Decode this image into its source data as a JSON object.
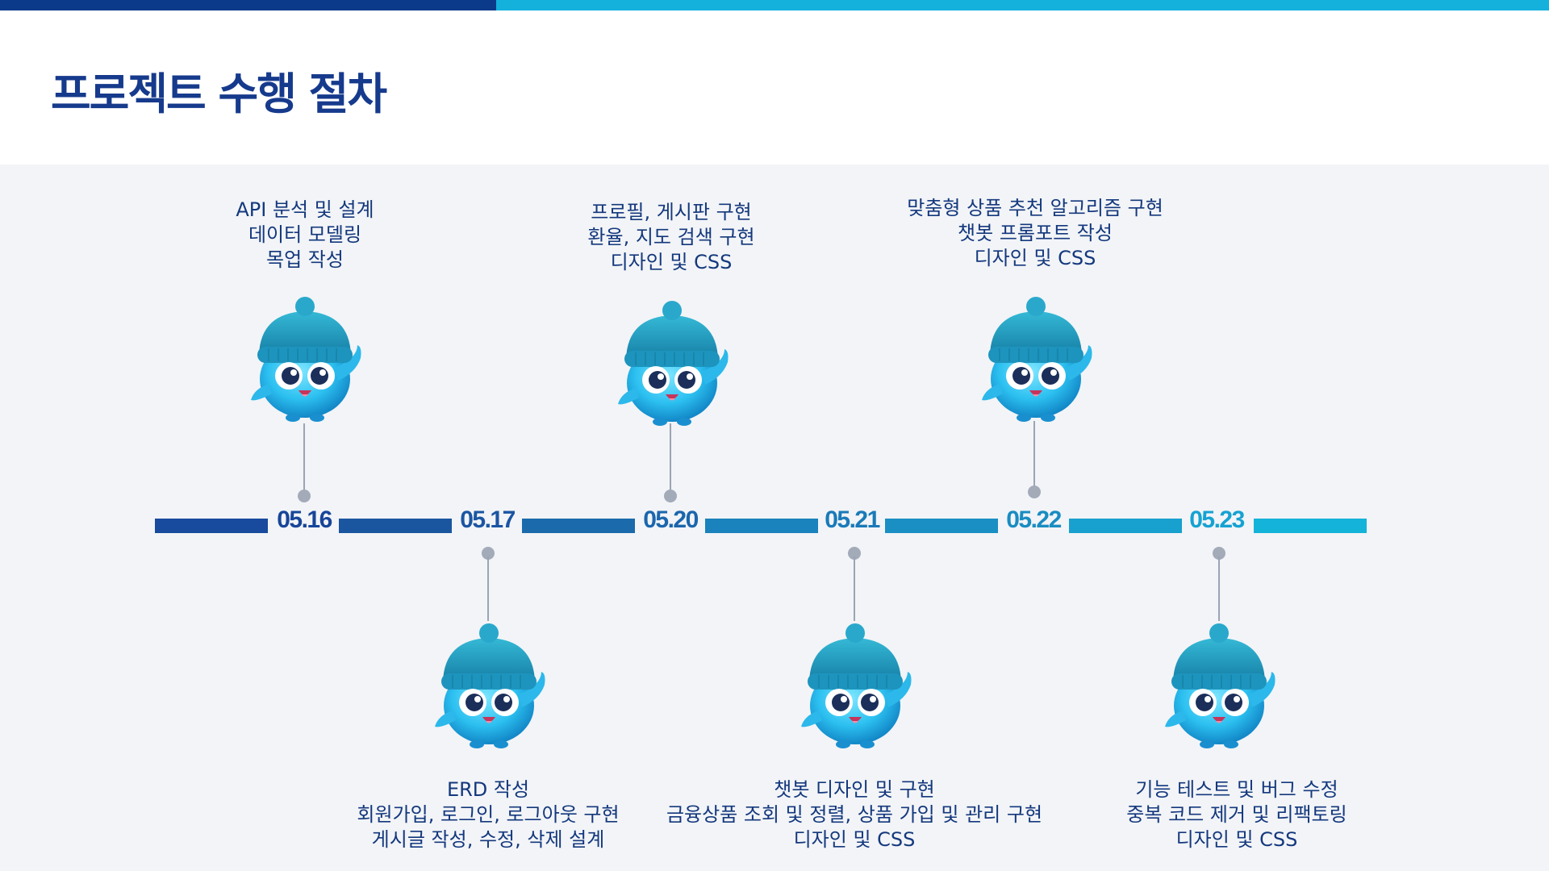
{
  "title": "프로젝트 수행 절차",
  "colors": {
    "top_bar_dark": "#0b3a8a",
    "top_bar_light": "#14b1dd",
    "title": "#163a8c",
    "label": "#14387d",
    "background": "#f2f4f7"
  },
  "milestones": [
    {
      "date": "05.16",
      "lines": [
        "API 분석 및 설계",
        "데이터 모델링",
        "목업 작성"
      ]
    },
    {
      "date": "05.17",
      "lines": [
        "ERD 작성",
        "회원가입, 로그인, 로그아웃 구현",
        "게시글 작성, 수정, 삭제 설계"
      ]
    },
    {
      "date": "05.20",
      "lines": [
        "프로필, 게시판 구현",
        "환율, 지도 검색 구현",
        "디자인 및 CSS"
      ]
    },
    {
      "date": "05.21",
      "lines": [
        "챗봇 디자인 및 구현",
        "금융상품 조회 및 정렬, 상품 가입 및 관리 구현",
        "디자인 및 CSS"
      ]
    },
    {
      "date": "05.22",
      "lines": [
        "맞춤형 상품 추천 알고리즘 구현",
        "챗봇 프롬포트 작성",
        "디자인 및 CSS"
      ]
    },
    {
      "date": "05.23",
      "lines": [
        "기능 테스트 및 버그 수정",
        "중복 코드 제거 및 리팩토링",
        "디자인 및 CSS"
      ]
    }
  ],
  "icons": {
    "mascot": "blue-mascot-with-beanie-icon"
  }
}
